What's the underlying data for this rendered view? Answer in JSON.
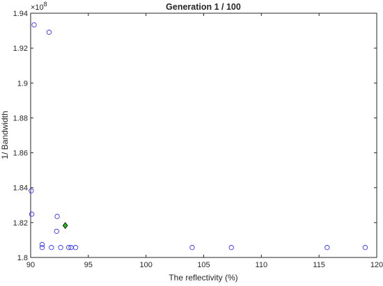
{
  "chart_data": {
    "type": "scatter",
    "title": "Generation 1 / 100",
    "xlabel": "The reflectivity (%)",
    "ylabel": "1/ Bandwidth",
    "xlim": [
      90,
      120
    ],
    "ylim": [
      1.8,
      1.94
    ],
    "y_exponent_label": "×10",
    "y_exponent_power": "8",
    "x_ticks": [
      "90",
      "95",
      "100",
      "105",
      "110",
      "115",
      "120"
    ],
    "y_ticks": [
      "1.8",
      "1.82",
      "1.84",
      "1.86",
      "1.88",
      "1.9",
      "1.92",
      "1.94"
    ],
    "grid": false,
    "series": [
      {
        "marker": "circle",
        "color": "#3333ff",
        "points": [
          {
            "x": 90.3,
            "y": 1.9333
          },
          {
            "x": 91.6,
            "y": 1.9291
          },
          {
            "x": 90.05,
            "y": 1.8382
          },
          {
            "x": 90.1,
            "y": 1.8248
          },
          {
            "x": 92.3,
            "y": 1.8235
          },
          {
            "x": 92.25,
            "y": 1.815
          },
          {
            "x": 91.0,
            "y": 1.8074
          },
          {
            "x": 91.0,
            "y": 1.8057
          },
          {
            "x": 91.8,
            "y": 1.8057
          },
          {
            "x": 92.6,
            "y": 1.8057
          },
          {
            "x": 93.3,
            "y": 1.8057
          },
          {
            "x": 93.5,
            "y": 1.8057
          },
          {
            "x": 93.9,
            "y": 1.8057
          },
          {
            "x": 104.0,
            "y": 1.8057
          },
          {
            "x": 107.4,
            "y": 1.8057
          },
          {
            "x": 115.7,
            "y": 1.8057
          },
          {
            "x": 119.0,
            "y": 1.8057
          }
        ]
      },
      {
        "marker": "diamond",
        "color": "#22bb22",
        "points": [
          {
            "x": 93.0,
            "y": 1.8183
          }
        ]
      }
    ]
  }
}
